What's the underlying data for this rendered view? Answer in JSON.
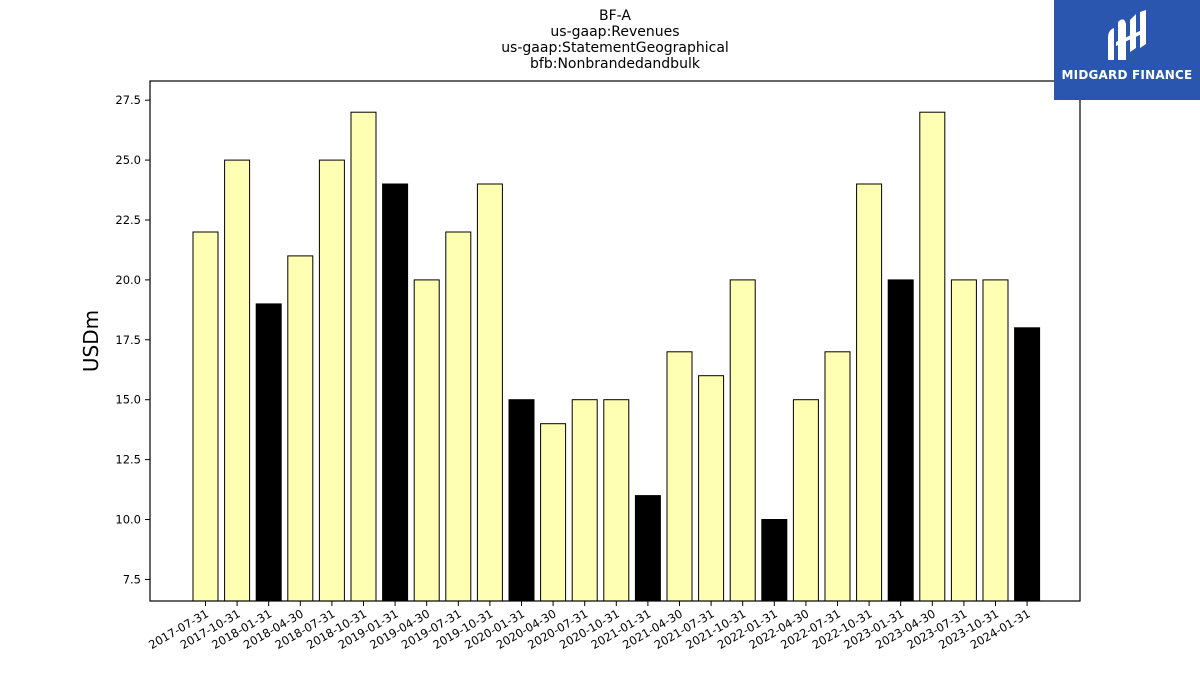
{
  "title_lines": [
    "BF-A",
    "us-gaap:Revenues",
    "us-gaap:StatementGeographical",
    "bfb:Nonbrandedandbulk"
  ],
  "logo": {
    "text": "MIDGARD FINANCE",
    "background": "#2a56b0"
  },
  "colors": {
    "highlight": "#000000",
    "normal": "#ffffb3",
    "edge": "#000000"
  },
  "chart_data": {
    "type": "bar",
    "title": "BF-A\nus-gaap:Revenues\nus-gaap:StatementGeographical\nbfb:Nonbrandedandbulk",
    "xlabel": "",
    "ylabel": "USDm",
    "ylim": [
      6.6,
      28.3
    ],
    "yticks": [
      "7.5",
      "10.0",
      "12.5",
      "15.0",
      "17.5",
      "20.0",
      "22.5",
      "25.0",
      "27.5"
    ],
    "grid": false,
    "categories": [
      "2017-07-31",
      "2017-10-31",
      "2018-01-31",
      "2018-04-30",
      "2018-07-31",
      "2018-10-31",
      "2019-01-31",
      "2019-04-30",
      "2019-07-31",
      "2019-10-31",
      "2020-01-31",
      "2020-04-30",
      "2020-07-31",
      "2020-10-31",
      "2021-01-31",
      "2021-04-30",
      "2021-07-31",
      "2021-10-31",
      "2022-01-31",
      "2022-04-30",
      "2022-07-31",
      "2022-10-31",
      "2023-01-31",
      "2023-04-30",
      "2023-07-31",
      "2023-10-31",
      "2024-01-31"
    ],
    "values": [
      22,
      25,
      19,
      21,
      25,
      27,
      24,
      20,
      22,
      24,
      15,
      14,
      15,
      15,
      11,
      17,
      16,
      20,
      10,
      15,
      17,
      24,
      20,
      27,
      20,
      20,
      18
    ],
    "highlight": [
      false,
      false,
      true,
      false,
      false,
      false,
      true,
      false,
      false,
      false,
      true,
      false,
      false,
      false,
      true,
      false,
      false,
      false,
      true,
      false,
      false,
      false,
      true,
      false,
      false,
      false,
      true
    ]
  }
}
